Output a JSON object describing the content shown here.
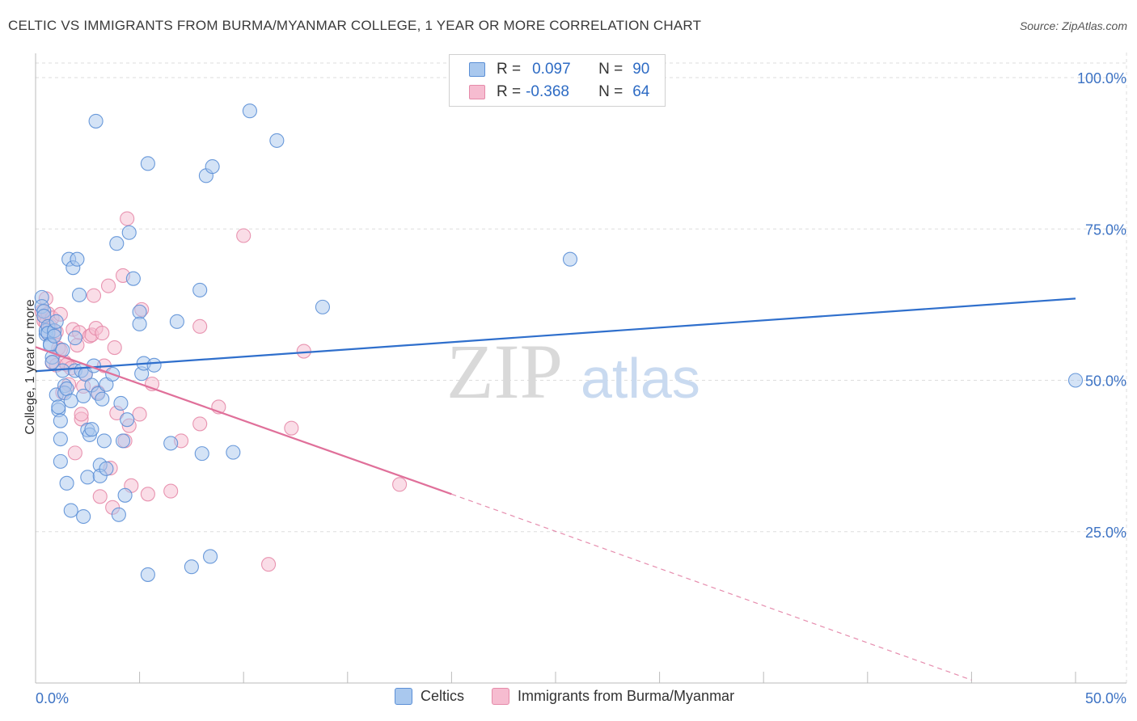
{
  "header": {
    "title": "CELTIC VS IMMIGRANTS FROM BURMA/MYANMAR COLLEGE, 1 YEAR OR MORE CORRELATION CHART",
    "source": "Source: ZipAtlas.com"
  },
  "watermark": {
    "zip": "ZIP",
    "atlas": "atlas"
  },
  "legend": {
    "rows": [
      {
        "r_label": "R =",
        "r_value": "0.097",
        "n_label": "N =",
        "n_value": "90"
      },
      {
        "r_label": "R =",
        "r_value": "-0.368",
        "n_label": "N =",
        "n_value": "64"
      }
    ]
  },
  "bottom_legend": {
    "series_a": "Celtics",
    "series_b": "Immigrants from Burma/Myanmar"
  },
  "colors": {
    "blue_fill": "#a9c8ee",
    "blue_stroke": "#5b8fd6",
    "blue_line": "#2f6fcc",
    "pink_fill": "#f6bcd0",
    "pink_stroke": "#e58aa9",
    "pink_line": "#e0709a",
    "tick_text": "#3d73c4",
    "grid": "#dddddd"
  },
  "chart_data": {
    "type": "scatter",
    "title": "CELTIC VS IMMIGRANTS FROM BURMA/MYANMAR COLLEGE, 1 YEAR OR MORE CORRELATION CHART",
    "xlabel": "",
    "ylabel": "College, 1 year or more",
    "xlim": [
      0,
      50
    ],
    "ylim": [
      0,
      100
    ],
    "x_tick_labels": [
      "0.0%",
      "50.0%"
    ],
    "y_ticks": [
      25,
      50,
      75,
      100
    ],
    "y_tick_labels": [
      "25.0%",
      "50.0%",
      "75.0%",
      "100.0%"
    ],
    "series": [
      {
        "name": "Celtics",
        "r": 0.097,
        "n": 90,
        "trend": {
          "x0": 0,
          "y0": 51.5,
          "x1": 50,
          "y1": 63.5
        },
        "points": [
          [
            0.3,
            63.7
          ],
          [
            0.3,
            62.2
          ],
          [
            0.4,
            61.4
          ],
          [
            0.4,
            60.6
          ],
          [
            0.5,
            57.6
          ],
          [
            0.5,
            58.2
          ],
          [
            0.6,
            58.9
          ],
          [
            0.6,
            57.8
          ],
          [
            0.7,
            56.0
          ],
          [
            0.7,
            55.8
          ],
          [
            0.8,
            53.8
          ],
          [
            0.8,
            53.0
          ],
          [
            0.9,
            58.2
          ],
          [
            0.9,
            57.3
          ],
          [
            1.0,
            59.7
          ],
          [
            1.0,
            47.6
          ],
          [
            1.1,
            45.1
          ],
          [
            1.1,
            45.6
          ],
          [
            1.2,
            43.3
          ],
          [
            1.2,
            40.3
          ],
          [
            1.2,
            36.6
          ],
          [
            1.3,
            55.0
          ],
          [
            1.3,
            51.6
          ],
          [
            1.4,
            49.1
          ],
          [
            1.4,
            47.9
          ],
          [
            1.5,
            33.0
          ],
          [
            1.5,
            48.6
          ],
          [
            1.6,
            70.0
          ],
          [
            1.7,
            28.5
          ],
          [
            1.7,
            46.6
          ],
          [
            1.8,
            68.6
          ],
          [
            1.9,
            57.0
          ],
          [
            1.9,
            51.6
          ],
          [
            2.0,
            70.0
          ],
          [
            2.1,
            64.1
          ],
          [
            2.2,
            51.6
          ],
          [
            2.3,
            47.4
          ],
          [
            2.3,
            27.5
          ],
          [
            2.4,
            51.0
          ],
          [
            2.5,
            41.8
          ],
          [
            2.5,
            34.0
          ],
          [
            2.6,
            41.0
          ],
          [
            2.7,
            41.9
          ],
          [
            2.7,
            49.2
          ],
          [
            2.8,
            52.4
          ],
          [
            2.9,
            92.8
          ],
          [
            3.0,
            47.8
          ],
          [
            3.1,
            36.0
          ],
          [
            3.1,
            34.2
          ],
          [
            3.2,
            46.9
          ],
          [
            3.3,
            40.0
          ],
          [
            3.4,
            49.3
          ],
          [
            3.4,
            35.4
          ],
          [
            3.7,
            51.0
          ],
          [
            3.9,
            72.6
          ],
          [
            4.0,
            27.8
          ],
          [
            4.1,
            46.2
          ],
          [
            4.2,
            40.0
          ],
          [
            4.3,
            31.0
          ],
          [
            4.4,
            43.5
          ],
          [
            4.5,
            74.4
          ],
          [
            4.7,
            66.8
          ],
          [
            5.0,
            61.3
          ],
          [
            5.0,
            59.3
          ],
          [
            5.1,
            51.1
          ],
          [
            5.2,
            52.8
          ],
          [
            5.4,
            85.8
          ],
          [
            5.4,
            17.9
          ],
          [
            5.7,
            52.5
          ],
          [
            6.5,
            39.6
          ],
          [
            6.8,
            59.7
          ],
          [
            7.5,
            19.2
          ],
          [
            7.9,
            64.9
          ],
          [
            8.0,
            37.9
          ],
          [
            8.2,
            83.8
          ],
          [
            8.4,
            20.9
          ],
          [
            8.5,
            85.3
          ],
          [
            9.5,
            38.1
          ],
          [
            10.3,
            94.5
          ],
          [
            11.6,
            89.6
          ],
          [
            13.8,
            62.1
          ],
          [
            25.7,
            70.0
          ],
          [
            50.0,
            50.0
          ]
        ]
      },
      {
        "name": "Immigrants from Burma/Myanmar",
        "r": -0.368,
        "n": 64,
        "trend": {
          "x0": 0,
          "y0": 55.5,
          "x1": 20,
          "y1": 31.2,
          "dashed_to_x": 45,
          "dashed_to_y": 0.5
        },
        "points": [
          [
            0.3,
            61.4
          ],
          [
            0.4,
            60.6
          ],
          [
            0.4,
            59.8
          ],
          [
            0.5,
            63.5
          ],
          [
            0.5,
            59.5
          ],
          [
            0.6,
            61.0
          ],
          [
            0.6,
            57.7
          ],
          [
            0.7,
            59.0
          ],
          [
            0.8,
            52.9
          ],
          [
            0.8,
            60.3
          ],
          [
            0.9,
            57.5
          ],
          [
            1.0,
            52.5
          ],
          [
            1.0,
            58.0
          ],
          [
            1.1,
            55.3
          ],
          [
            1.2,
            60.9
          ],
          [
            1.2,
            55.0
          ],
          [
            1.3,
            48.0
          ],
          [
            1.4,
            53.0
          ],
          [
            1.5,
            52.6
          ],
          [
            1.6,
            49.3
          ],
          [
            1.7,
            52.0
          ],
          [
            1.8,
            58.4
          ],
          [
            1.9,
            38.0
          ],
          [
            2.0,
            55.8
          ],
          [
            2.1,
            57.9
          ],
          [
            2.2,
            43.6
          ],
          [
            2.2,
            44.4
          ],
          [
            2.3,
            49.0
          ],
          [
            2.4,
            51.0
          ],
          [
            2.6,
            57.3
          ],
          [
            2.7,
            57.5
          ],
          [
            2.8,
            64.0
          ],
          [
            2.9,
            58.6
          ],
          [
            3.0,
            48.0
          ],
          [
            3.1,
            30.8
          ],
          [
            3.2,
            57.8
          ],
          [
            3.3,
            52.4
          ],
          [
            3.5,
            65.6
          ],
          [
            3.6,
            35.5
          ],
          [
            3.7,
            29.0
          ],
          [
            3.8,
            55.4
          ],
          [
            3.9,
            44.6
          ],
          [
            4.2,
            67.3
          ],
          [
            4.3,
            40.0
          ],
          [
            4.4,
            76.7
          ],
          [
            4.5,
            42.5
          ],
          [
            4.6,
            32.6
          ],
          [
            5.0,
            44.4
          ],
          [
            5.1,
            61.7
          ],
          [
            5.4,
            31.2
          ],
          [
            5.6,
            49.4
          ],
          [
            6.5,
            31.7
          ],
          [
            7.0,
            40.0
          ],
          [
            7.9,
            58.9
          ],
          [
            7.9,
            42.8
          ],
          [
            8.8,
            45.6
          ],
          [
            10.0,
            73.9
          ],
          [
            11.2,
            19.6
          ],
          [
            12.3,
            42.1
          ],
          [
            12.9,
            54.8
          ],
          [
            17.5,
            32.8
          ]
        ]
      }
    ]
  }
}
